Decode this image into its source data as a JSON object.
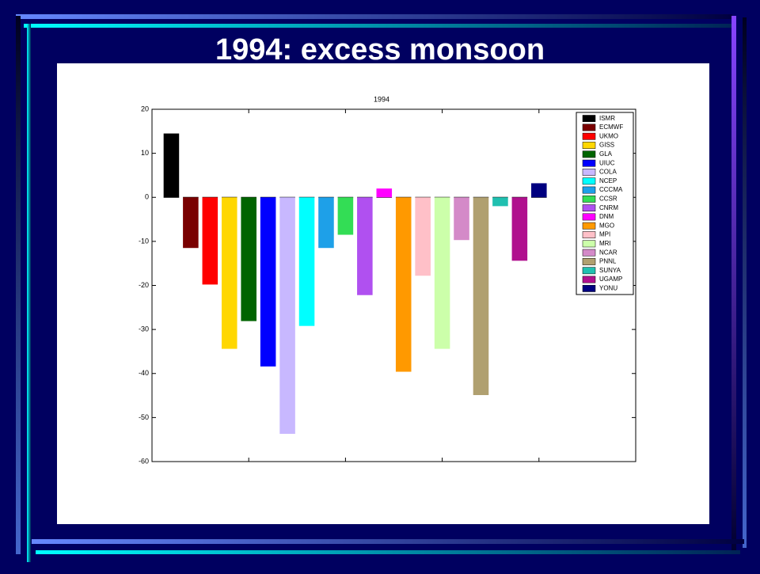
{
  "slide_title": "1994: excess monsoon",
  "chart_data": {
    "type": "bar",
    "title": "1994",
    "x": [
      1,
      2,
      3,
      4,
      5,
      6,
      7,
      8,
      9,
      10,
      11,
      12,
      13,
      14,
      15,
      16,
      17,
      18,
      19,
      20
    ],
    "values": [
      14.5,
      -11.5,
      -19.8,
      -34.4,
      -28.1,
      -38.4,
      -53.7,
      -29.2,
      -11.5,
      -8.5,
      -22.2,
      2,
      -39.6,
      -17.8,
      -34.4,
      -9.7,
      -44.9,
      -2,
      -14.4,
      3.2
    ],
    "colors": [
      "#000000",
      "#7a0000",
      "#ff0000",
      "#ffd700",
      "#006400",
      "#0000ff",
      "#c8b8ff",
      "#00ffff",
      "#1ea0e8",
      "#33dd55",
      "#b050f0",
      "#ff00ff",
      "#ff9900",
      "#ffc0c8",
      "#ccffaa",
      "#d48ac8",
      "#b0a070",
      "#20c0b0",
      "#b0108e",
      "#000080"
    ],
    "legend": [
      "ISMR",
      "ECMWF",
      "UKMO",
      "GISS",
      "GLA",
      "UIUC",
      "COLA",
      "NCEP",
      "CCCMA",
      "CCSR",
      "CNRM",
      "DNM",
      "MGO",
      "MPI",
      "MRI",
      "NCAR",
      "PNNL",
      "SUNYA",
      "UGAMP",
      "YONU"
    ],
    "legend_position": "upper right",
    "xlim": [
      0,
      25
    ],
    "xticks": [
      5,
      10,
      15,
      20
    ],
    "ylim": [
      -60,
      20
    ],
    "yticks": [
      -60,
      -50,
      -40,
      -30,
      -20,
      -10,
      0,
      10,
      20
    ]
  }
}
